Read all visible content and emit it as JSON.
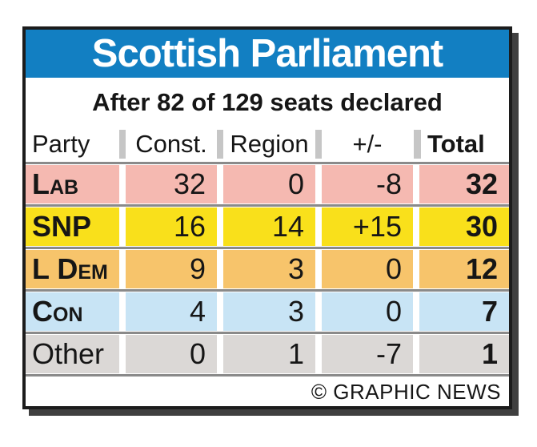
{
  "header": {
    "title": "Scottish Parliament",
    "subtitle": "After 82 of 129 seats declared"
  },
  "table": {
    "columns": [
      {
        "label": "Party"
      },
      {
        "label": "Const."
      },
      {
        "label": "Region"
      },
      {
        "label": "+/-"
      },
      {
        "label": "Total"
      }
    ],
    "rows": [
      {
        "party": "Lab",
        "smallcaps": true,
        "bold": true,
        "row_color": "#f5b9b1",
        "values": [
          "32",
          "0",
          "-8",
          "32"
        ]
      },
      {
        "party": "SNP",
        "smallcaps": false,
        "bold": true,
        "row_color": "#f9e01b",
        "values": [
          "16",
          "14",
          "+15",
          "30"
        ]
      },
      {
        "party": "L Dem",
        "smallcaps": true,
        "bold": true,
        "row_color": "#f7c46b",
        "values": [
          "9",
          "3",
          "0",
          "12"
        ]
      },
      {
        "party": "Con",
        "smallcaps": true,
        "bold": true,
        "row_color": "#c8e4f5",
        "values": [
          "4",
          "3",
          "0",
          "7"
        ]
      },
      {
        "party": "Other",
        "smallcaps": false,
        "bold": false,
        "row_color": "#dbd8d6",
        "values": [
          "0",
          "1",
          "-7",
          "1"
        ]
      }
    ]
  },
  "footer": {
    "credit": "© GRAPHIC NEWS"
  },
  "colors": {
    "title_bar": "#127fc2",
    "title_text": "#ffffff",
    "border": "#1c1c1c",
    "shadow": "#404040",
    "separator_line": "#8a8a8a",
    "header_separator_bar": "#c6c6c6",
    "text": "#161616"
  },
  "chart_data": {
    "type": "table",
    "title": "Scottish Parliament",
    "subtitle": "After 82 of 129 seats declared",
    "columns": [
      "Party",
      "Const.",
      "Region",
      "+/-",
      "Total"
    ],
    "rows": [
      [
        "LAB",
        32,
        0,
        -8,
        32
      ],
      [
        "SNP",
        16,
        14,
        15,
        30
      ],
      [
        "L DEM",
        9,
        3,
        0,
        12
      ],
      [
        "CON",
        4,
        3,
        0,
        7
      ],
      [
        "Other",
        0,
        1,
        -7,
        1
      ]
    ],
    "row_colors": [
      "#f5b9b1",
      "#f9e01b",
      "#f7c46b",
      "#c8e4f5",
      "#dbd8d6"
    ],
    "source": "© GRAPHIC NEWS"
  }
}
